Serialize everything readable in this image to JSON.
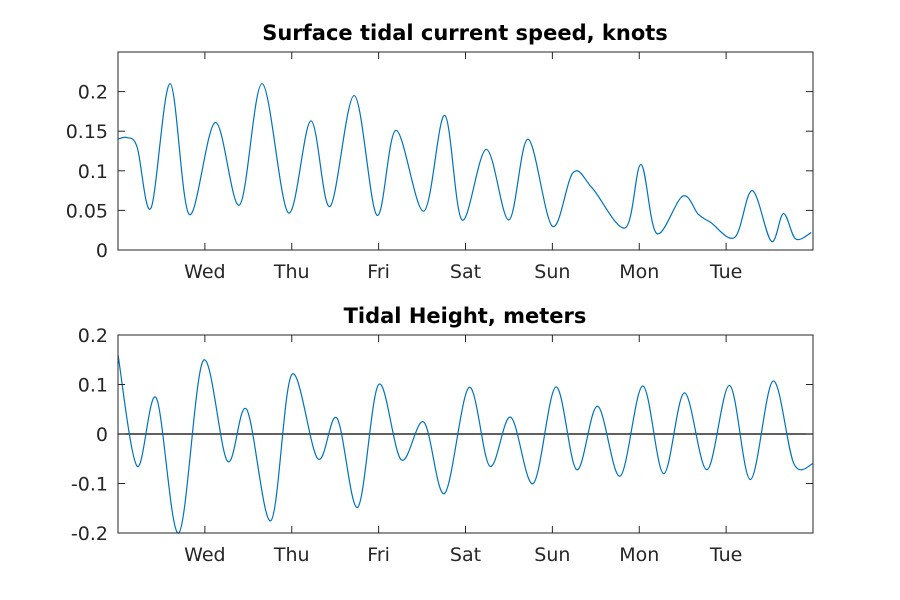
{
  "chart_data": [
    {
      "type": "line",
      "title": "Surface tidal current speed, knots",
      "xlabel": "",
      "ylabel": "",
      "xlim": [
        0,
        8
      ],
      "ylim": [
        0,
        0.25
      ],
      "x_ticks": [
        {
          "value": 1,
          "label": "Wed"
        },
        {
          "value": 2,
          "label": "Thu"
        },
        {
          "value": 3,
          "label": "Fri"
        },
        {
          "value": 4,
          "label": "Sat"
        },
        {
          "value": 5,
          "label": "Sun"
        },
        {
          "value": 6,
          "label": "Mon"
        },
        {
          "value": 7,
          "label": "Tue"
        }
      ],
      "y_ticks": [
        {
          "value": 0,
          "label": "0"
        },
        {
          "value": 0.05,
          "label": "0.05"
        },
        {
          "value": 0.1,
          "label": "0.1"
        },
        {
          "value": 0.15,
          "label": "0.15"
        },
        {
          "value": 0.2,
          "label": "0.2"
        }
      ],
      "grid": false,
      "series": [
        {
          "color": "#0072bd",
          "x": [
            0,
            0.1,
            0.22,
            0.38,
            0.6,
            0.82,
            1.12,
            1.4,
            1.66,
            1.96,
            2.22,
            2.44,
            2.72,
            2.98,
            3.2,
            3.52,
            3.76,
            3.96,
            4.24,
            4.5,
            4.72,
            5.0,
            5.24,
            5.46,
            5.84,
            6.02,
            6.2,
            6.5,
            6.68,
            6.82,
            7.1,
            7.3,
            7.52,
            7.66,
            7.8,
            7.98
          ],
          "y": [
            0.14,
            0.142,
            0.13,
            0.053,
            0.21,
            0.045,
            0.161,
            0.057,
            0.21,
            0.047,
            0.163,
            0.055,
            0.195,
            0.044,
            0.151,
            0.049,
            0.17,
            0.038,
            0.127,
            0.038,
            0.14,
            0.03,
            0.098,
            0.078,
            0.028,
            0.108,
            0.021,
            0.068,
            0.045,
            0.035,
            0.016,
            0.075,
            0.011,
            0.046,
            0.014,
            0.022
          ]
        }
      ]
    },
    {
      "type": "line",
      "title": "Tidal Height, meters",
      "xlabel": "",
      "ylabel": "",
      "xlim": [
        0,
        8
      ],
      "ylim": [
        -0.2,
        0.2
      ],
      "x_ticks": [
        {
          "value": 1,
          "label": "Wed"
        },
        {
          "value": 2,
          "label": "Thu"
        },
        {
          "value": 3,
          "label": "Fri"
        },
        {
          "value": 4,
          "label": "Sat"
        },
        {
          "value": 5,
          "label": "Sun"
        },
        {
          "value": 6,
          "label": "Mon"
        },
        {
          "value": 7,
          "label": "Tue"
        }
      ],
      "y_ticks": [
        {
          "value": -0.2,
          "label": "-0.2"
        },
        {
          "value": -0.1,
          "label": "-0.1"
        },
        {
          "value": 0,
          "label": "0"
        },
        {
          "value": 0.1,
          "label": "0.1"
        },
        {
          "value": 0.2,
          "label": "0.2"
        }
      ],
      "grid": false,
      "zero_line": true,
      "series": [
        {
          "color": "#0072bd",
          "x": [
            0,
            0.22,
            0.44,
            0.7,
            0.98,
            1.26,
            1.48,
            1.76,
            2.0,
            2.3,
            2.52,
            2.76,
            3.0,
            3.26,
            3.52,
            3.76,
            4.04,
            4.28,
            4.52,
            4.78,
            5.04,
            5.28,
            5.52,
            5.78,
            6.04,
            6.28,
            6.52,
            6.78,
            7.04,
            7.28,
            7.54,
            7.78,
            8.0
          ],
          "y": [
            0.16,
            -0.065,
            0.073,
            -0.2,
            0.148,
            -0.055,
            0.05,
            -0.175,
            0.12,
            -0.05,
            0.032,
            -0.148,
            0.1,
            -0.052,
            0.024,
            -0.12,
            0.094,
            -0.065,
            0.034,
            -0.1,
            0.095,
            -0.072,
            0.056,
            -0.085,
            0.097,
            -0.08,
            0.083,
            -0.072,
            0.098,
            -0.092,
            0.107,
            -0.06,
            -0.06
          ]
        }
      ]
    }
  ]
}
